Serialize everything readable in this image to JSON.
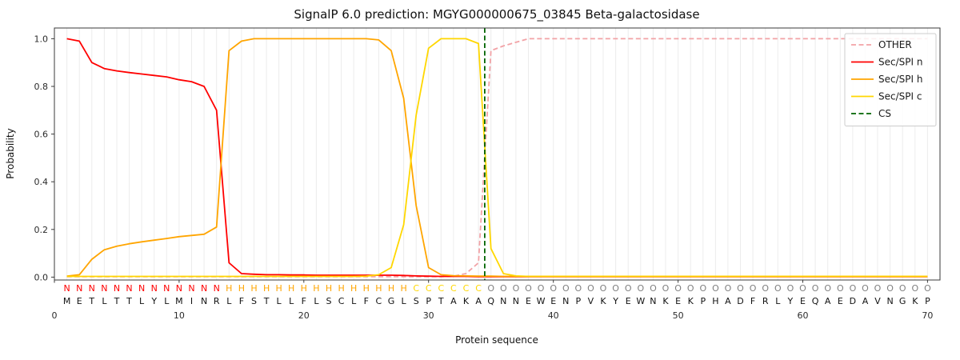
{
  "chart_data": {
    "type": "line",
    "title": "SignalP 6.0 prediction: MGYG000000675_03845 Beta-galactosidase",
    "xlabel": "Protein sequence",
    "ylabel": "Probability",
    "xlim": [
      0,
      71
    ],
    "ylim": [
      -0.012,
      1.045
    ],
    "xticks": [
      0,
      10,
      20,
      30,
      40,
      50,
      60,
      70
    ],
    "yticks": [
      "0.0",
      "0.2",
      "0.4",
      "0.6",
      "0.8",
      "1.0"
    ],
    "grid": "vertical-line-per-residue",
    "legend_position": "top-right",
    "colors": {
      "grid": "#ececec",
      "spine": "#3a3a3a"
    },
    "sequence": "METLTTLYLMINRLFSTLLFLSCLFCGLSPTAKAQNNEWENPVKYEWNKEKPHADFRLYEQAEDAVNGKP",
    "region_labels": "NNNNNNNNNNNNNHHHHHHHHHHHHHHHCCCCCCOOOOOOOOOOOOOOOOOOOOOOOOOOOOOOOOOOOO",
    "region_colors": {
      "N": "#ff0000",
      "H": "#ffa500",
      "C": "#ffd700",
      "O": "#7f7f7f"
    },
    "series": [
      {
        "name": "OTHER",
        "color": "#f2a2a6",
        "dashed": true,
        "values": [
          0.002,
          0.002,
          0.002,
          0.002,
          0.002,
          0.002,
          0.002,
          0.002,
          0.002,
          0.002,
          0.002,
          0.002,
          0.002,
          0.002,
          0.002,
          0.002,
          0.002,
          0.002,
          0.002,
          0.002,
          0.002,
          0.002,
          0.002,
          0.002,
          0.002,
          0.002,
          0.002,
          0.002,
          0.002,
          0.002,
          0.002,
          0.004,
          0.015,
          0.06,
          0.95,
          0.97,
          0.985,
          1.0,
          1.0,
          1.0,
          1.0,
          1.0,
          1.0,
          1.0,
          1.0,
          1.0,
          1.0,
          1.0,
          1.0,
          1.0,
          1.0,
          1.0,
          1.0,
          1.0,
          1.0,
          1.0,
          1.0,
          1.0,
          1.0,
          1.0,
          1.0,
          1.0,
          1.0,
          1.0,
          1.0,
          1.0,
          1.0,
          1.0,
          1.0,
          1.0
        ]
      },
      {
        "name": "Sec/SPI n",
        "color": "#ff0000",
        "dashed": false,
        "values": [
          1.0,
          0.99,
          0.9,
          0.875,
          0.865,
          0.858,
          0.852,
          0.846,
          0.84,
          0.828,
          0.82,
          0.8,
          0.7,
          0.06,
          0.015,
          0.012,
          0.01,
          0.01,
          0.009,
          0.009,
          0.008,
          0.008,
          0.008,
          0.008,
          0.008,
          0.008,
          0.008,
          0.007,
          0.005,
          0.004,
          0.003,
          0.003,
          0.003,
          0.002,
          0.002,
          0.002,
          0.002,
          0.002,
          0.002,
          0.002,
          0.002,
          0.002,
          0.002,
          0.002,
          0.002,
          0.002,
          0.002,
          0.002,
          0.002,
          0.002,
          0.002,
          0.002,
          0.002,
          0.002,
          0.002,
          0.002,
          0.002,
          0.002,
          0.002,
          0.002,
          0.002,
          0.002,
          0.002,
          0.002,
          0.002,
          0.002,
          0.002,
          0.002,
          0.002,
          0.002
        ]
      },
      {
        "name": "Sec/SPI h",
        "color": "#ffa500",
        "dashed": false,
        "values": [
          0.004,
          0.01,
          0.075,
          0.115,
          0.13,
          0.14,
          0.148,
          0.155,
          0.162,
          0.17,
          0.175,
          0.18,
          0.21,
          0.95,
          0.99,
          1.0,
          1.0,
          1.0,
          1.0,
          1.0,
          1.0,
          1.0,
          1.0,
          1.0,
          1.0,
          0.995,
          0.95,
          0.75,
          0.3,
          0.04,
          0.01,
          0.006,
          0.005,
          0.004,
          0.004,
          0.003,
          0.003,
          0.003,
          0.003,
          0.003,
          0.003,
          0.003,
          0.003,
          0.003,
          0.003,
          0.003,
          0.003,
          0.003,
          0.003,
          0.003,
          0.003,
          0.003,
          0.003,
          0.003,
          0.003,
          0.003,
          0.003,
          0.003,
          0.003,
          0.003,
          0.003,
          0.003,
          0.003,
          0.003,
          0.003,
          0.003,
          0.003,
          0.003,
          0.003,
          0.003
        ]
      },
      {
        "name": "Sec/SPI c",
        "color": "#ffd700",
        "dashed": false,
        "values": [
          0.003,
          0.003,
          0.003,
          0.003,
          0.003,
          0.003,
          0.003,
          0.003,
          0.003,
          0.003,
          0.003,
          0.003,
          0.003,
          0.003,
          0.003,
          0.003,
          0.003,
          0.003,
          0.003,
          0.003,
          0.003,
          0.003,
          0.003,
          0.003,
          0.004,
          0.01,
          0.04,
          0.22,
          0.68,
          0.96,
          1.0,
          1.0,
          1.0,
          0.98,
          0.12,
          0.015,
          0.005,
          0.003,
          0.003,
          0.003,
          0.003,
          0.003,
          0.003,
          0.003,
          0.003,
          0.003,
          0.003,
          0.003,
          0.003,
          0.003,
          0.003,
          0.003,
          0.003,
          0.003,
          0.003,
          0.003,
          0.003,
          0.003,
          0.003,
          0.003,
          0.003,
          0.003,
          0.003,
          0.003,
          0.003,
          0.003,
          0.003,
          0.003,
          0.003,
          0.003
        ]
      }
    ],
    "cs_marker": {
      "label": "CS",
      "x": 34.5,
      "color": "#006400",
      "dashed": true
    },
    "legend": [
      "OTHER",
      "Sec/SPI n",
      "Sec/SPI h",
      "Sec/SPI c",
      "CS"
    ]
  }
}
